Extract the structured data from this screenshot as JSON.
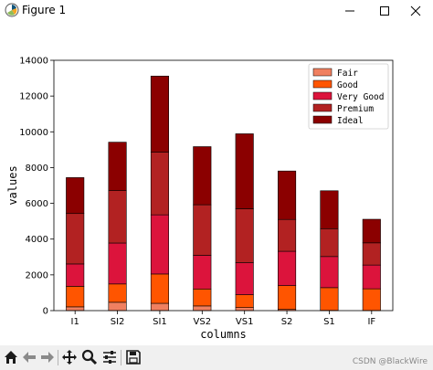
{
  "window": {
    "title": "Figure 1"
  },
  "toolbar": {
    "icons": [
      "home-icon",
      "back-arrow-icon",
      "forward-arrow-icon",
      "pan-icon",
      "zoom-icon",
      "configure-subplots-icon",
      "save-icon"
    ],
    "watermark": "CSDN @BlackWire"
  },
  "chart_data": {
    "type": "bar",
    "stacked": true,
    "categories": [
      "I1",
      "SI2",
      "SI1",
      "VS2",
      "VS1",
      "S2",
      "S1",
      "IF"
    ],
    "series": [
      {
        "name": "Fair",
        "color": "#f08060",
        "values": [
          210,
          466,
          408,
          261,
          170,
          69,
          14,
          9
        ]
      },
      {
        "name": "Good",
        "color": "#ff5500",
        "values": [
          1150,
          1025,
          1640,
          950,
          720,
          1330,
          1270,
          1210
        ]
      },
      {
        "name": "Very Good",
        "color": "#dc143c",
        "values": [
          1250,
          2290,
          3310,
          1880,
          1790,
          1920,
          1740,
          1330
        ]
      },
      {
        "name": "Premium",
        "color": "#b22222",
        "values": [
          2820,
          2930,
          3500,
          2830,
          3020,
          1780,
          1560,
          1240
        ]
      },
      {
        "name": "Ideal",
        "color": "#8b0000",
        "values": [
          2010,
          2710,
          4260,
          3250,
          4190,
          2710,
          2120,
          1320
        ]
      }
    ],
    "xlabel": "columns",
    "ylabel": "values",
    "ylim": [
      0,
      14000
    ],
    "yticks": [
      0,
      2000,
      4000,
      6000,
      8000,
      10000,
      12000,
      14000
    ],
    "legend": "top-right",
    "grid": false
  }
}
